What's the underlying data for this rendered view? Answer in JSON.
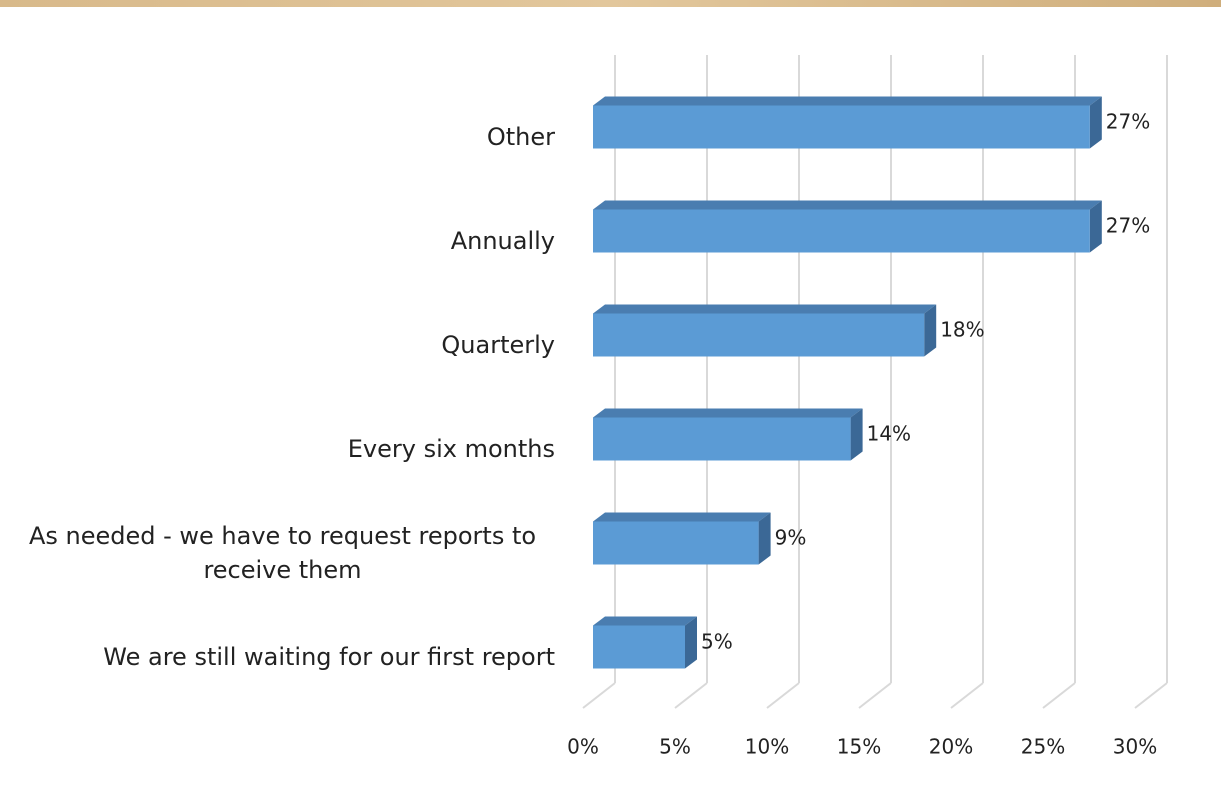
{
  "chart_data": {
    "type": "bar",
    "orientation": "horizontal",
    "categories": [
      "Other",
      "Annually",
      "Quarterly",
      "Every six months",
      "As needed - we have to request reports to receive them",
      "We are still waiting for our first report"
    ],
    "values": [
      27,
      27,
      18,
      14,
      9,
      5
    ],
    "value_labels": [
      "27%",
      "27%",
      "18%",
      "14%",
      "9%",
      "5%"
    ],
    "color": "#5b9bd5",
    "xlim": [
      0,
      30
    ],
    "xticks": [
      {
        "value": 0,
        "label": "0%"
      },
      {
        "value": 5,
        "label": "5%"
      },
      {
        "value": 10,
        "label": "10%"
      },
      {
        "value": 15,
        "label": "15%"
      },
      {
        "value": 20,
        "label": "20%"
      },
      {
        "value": 25,
        "label": "25%"
      },
      {
        "value": 30,
        "label": "30%"
      }
    ],
    "grid": true
  }
}
